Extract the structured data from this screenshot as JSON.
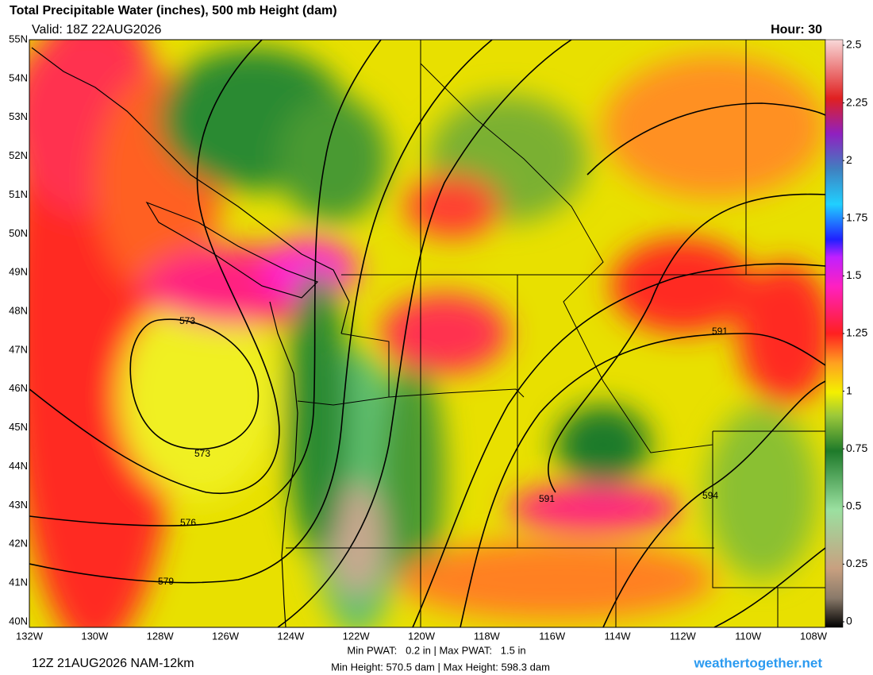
{
  "header": {
    "title": "Total Precipitable Water (inches), 500 mb Height (dam)",
    "valid": "Valid: 18Z 22AUG2026",
    "hour": "Hour: 30"
  },
  "map": {
    "lat_labels": [
      "55N",
      "54N",
      "53N",
      "52N",
      "51N",
      "50N",
      "49N",
      "48N",
      "47N",
      "46N",
      "45N",
      "44N",
      "43N",
      "42N",
      "41N",
      "40N"
    ],
    "lon_labels": [
      "132W",
      "130W",
      "128W",
      "126W",
      "124W",
      "122W",
      "120W",
      "118W",
      "116W",
      "114W",
      "112W",
      "110W",
      "108W"
    ],
    "contour_labels": [
      "573",
      "573",
      "576",
      "579",
      "591",
      "591",
      "594"
    ]
  },
  "colorbar": {
    "ticks": [
      0,
      0.25,
      0.5,
      0.75,
      1,
      1.25,
      1.5,
      1.75,
      2,
      2.25,
      2.5
    ]
  },
  "footer": {
    "run": "12Z 21AUG2026 NAM-12km",
    "pwat": "Min PWAT:   0.2 in | Max PWAT:   1.5 in",
    "height": "Min Height: 570.5 dam | Max Height: 598.3 dam",
    "site": "weathertogether.net"
  }
}
